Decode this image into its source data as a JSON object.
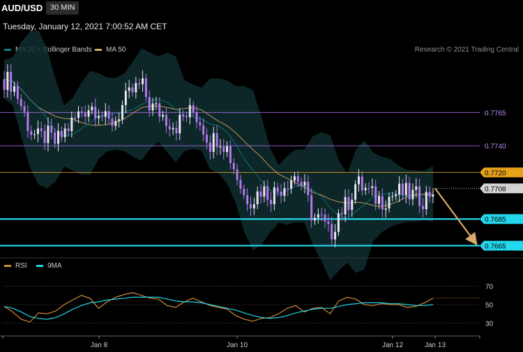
{
  "header": {
    "symbol": "AUD/USD",
    "timeframe": "30 MIN",
    "datetime": "Tuesday, January 12, 2021 7:00:52 AM CET"
  },
  "legend": {
    "ma20": {
      "label": "MA 20 + Bollinger Bands",
      "color": "#0e7c86"
    },
    "ma50": {
      "label": "MA 50",
      "color": "#d9a86c"
    },
    "credit": "Research © 2021 Trading Central"
  },
  "rsi_legend": {
    "rsi": {
      "label": "RSI",
      "color": "#d08a3a"
    },
    "ma9": {
      "label": "9MA",
      "color": "#20d5e8"
    }
  },
  "chart_data": [
    {
      "type": "candlestick",
      "title": "AUD/USD",
      "price_range": [
        0.766,
        0.7805
      ],
      "levels": [
        {
          "value": 0.7765,
          "label": "0.7765",
          "color": "#a46ce8",
          "style": "line"
        },
        {
          "value": 0.774,
          "label": "0.7740",
          "color": "#a46ce8",
          "style": "line"
        },
        {
          "value": 0.772,
          "label": "0.7720",
          "color": "#e8a21a",
          "style": "line"
        },
        {
          "value": 0.7708,
          "label": "0.7708",
          "color": "#cfcfcf",
          "style": "dotted"
        },
        {
          "value": 0.7685,
          "label": "0.7685",
          "color": "#25d8ee",
          "style": "thick"
        },
        {
          "value": 0.7665,
          "label": "0.7665",
          "color": "#25d8ee",
          "style": "thick"
        }
      ],
      "x_ticks": [
        "Jan 8",
        "Jan 10",
        "Jan 12",
        "Jan 13"
      ],
      "close_path": [
        0.779,
        0.7787,
        0.777,
        0.7752,
        0.7745,
        0.7748,
        0.7742,
        0.775,
        0.7758,
        0.7766,
        0.777,
        0.7768,
        0.7756,
        0.776,
        0.7772,
        0.7781,
        0.7786,
        0.777,
        0.7766,
        0.776,
        0.7755,
        0.7762,
        0.7766,
        0.7757,
        0.7742,
        0.7748,
        0.7738,
        0.772,
        0.7702,
        0.77,
        0.7708,
        0.7703,
        0.7707,
        0.7714,
        0.7718,
        0.7707,
        0.7686,
        0.7684,
        0.7672,
        0.769,
        0.7696,
        0.7712,
        0.7708,
        0.7702,
        0.7699,
        0.7702,
        0.7705,
        0.7704,
        0.7702,
        0.77,
        0.7708
      ],
      "forecast": {
        "from": 0.7708,
        "to": 0.7666,
        "color": "#d9a86c"
      }
    },
    {
      "type": "line",
      "title": "RSI",
      "ylim": [
        25,
        75
      ],
      "y_ticks": [
        70,
        50,
        30
      ],
      "series": [
        {
          "name": "RSI",
          "color": "#d08a3a",
          "values": [
            48,
            42,
            34,
            31,
            41,
            40,
            43,
            50,
            55,
            60,
            57,
            46,
            53,
            58,
            61,
            63,
            60,
            57,
            56,
            49,
            47,
            53,
            57,
            53,
            49,
            47,
            45,
            38,
            34,
            32,
            35,
            36,
            40,
            46,
            49,
            42,
            46,
            47,
            40,
            54,
            58,
            56,
            50,
            49,
            51,
            50,
            50,
            47,
            48,
            52,
            57
          ]
        },
        {
          "name": "9MA",
          "color": "#20d5e8",
          "values": [
            48,
            46,
            42,
            37,
            35,
            34,
            36,
            40,
            45,
            49,
            52,
            53,
            55,
            56,
            57,
            58,
            58,
            58,
            58,
            56,
            54,
            53,
            53,
            52,
            50,
            48,
            46,
            44,
            41,
            38,
            36,
            35,
            36,
            38,
            41,
            43,
            45,
            46,
            46,
            48,
            50,
            51,
            52,
            52,
            52,
            51,
            51,
            50,
            49,
            49,
            50
          ]
        }
      ],
      "last_level": 57
    }
  ]
}
